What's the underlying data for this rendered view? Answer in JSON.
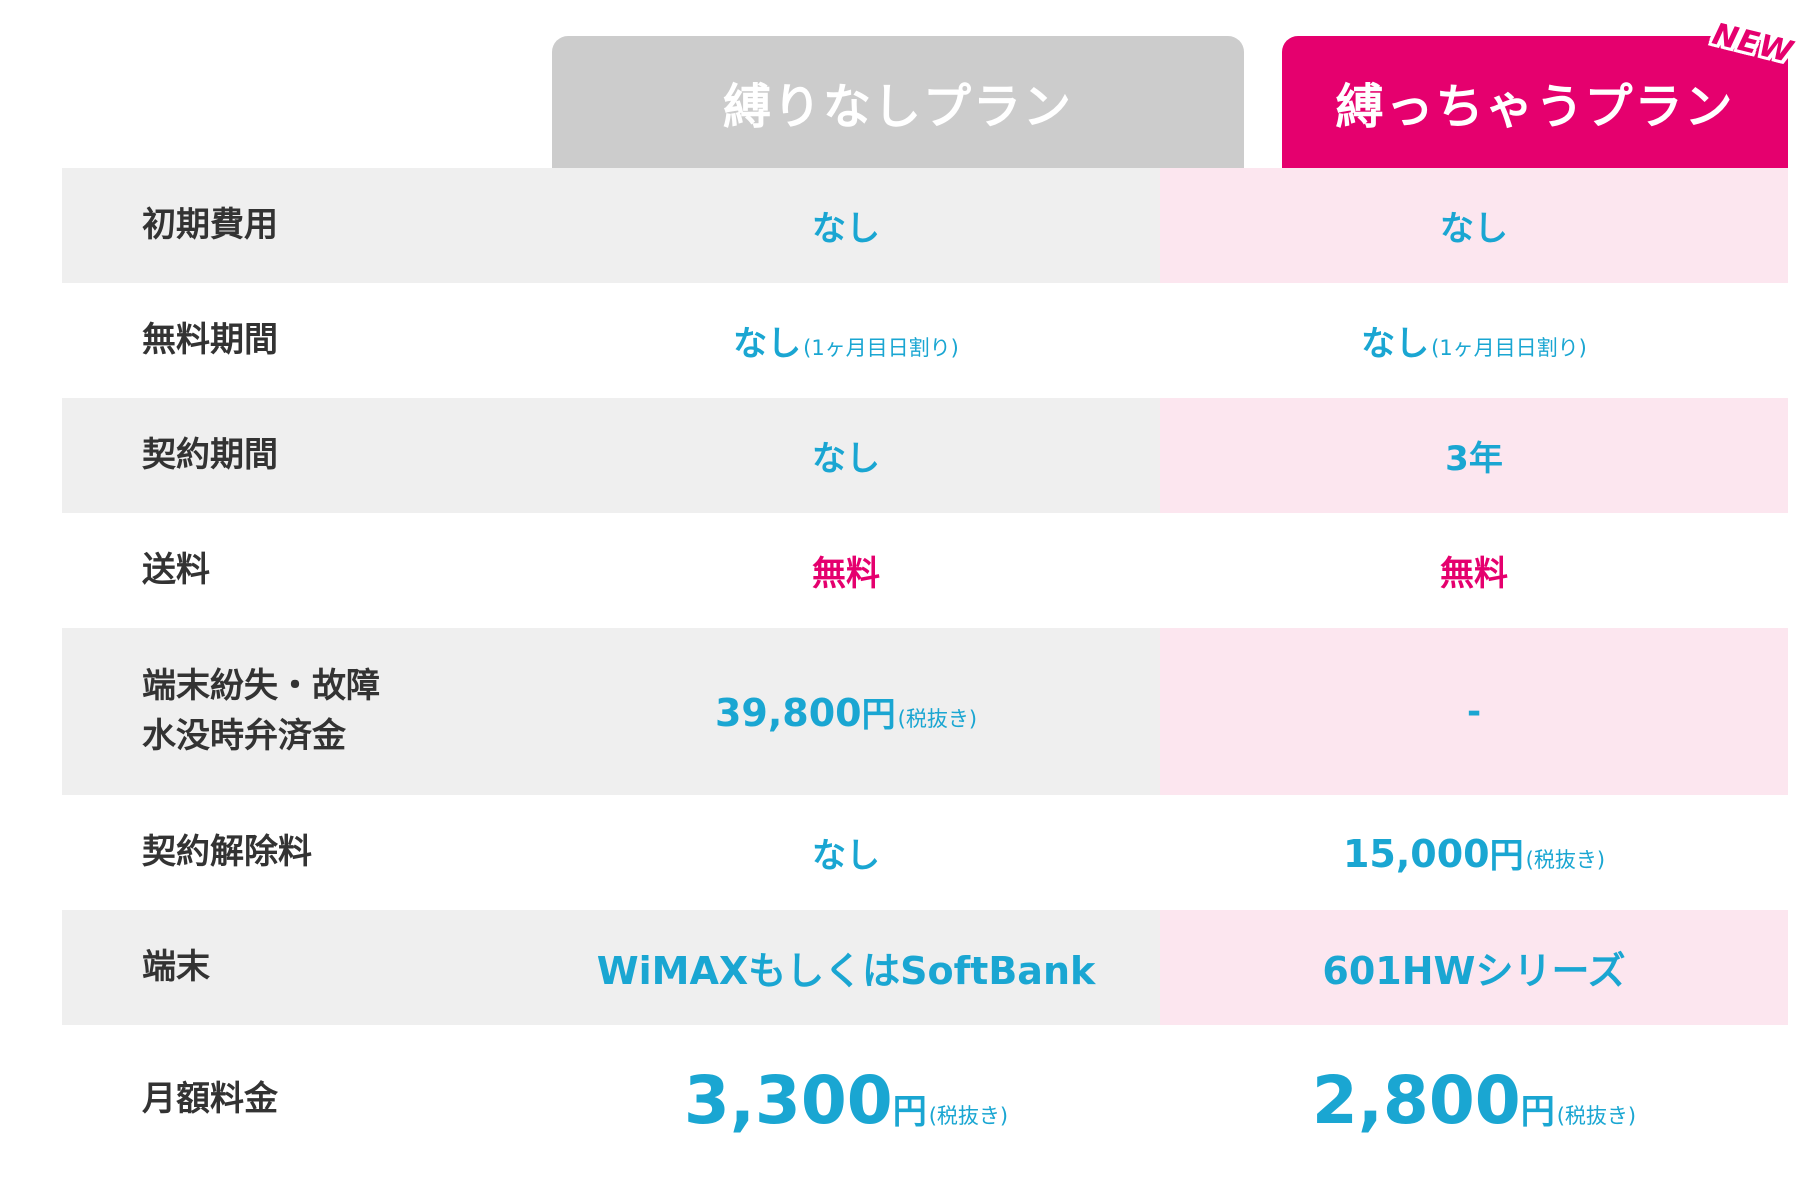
{
  "headers": {
    "free_plan": "縛りなしプラン",
    "bind_plan": "縛っちゃうプラン",
    "new_badge": "NEW"
  },
  "rows": [
    {
      "label": "初期費用",
      "free": "なし",
      "bind": "なし"
    },
    {
      "label": "無料期間",
      "free": "なし",
      "free_note": "(1ヶ月目日割り)",
      "bind": "なし",
      "bind_note": "(1ヶ月目日割り)"
    },
    {
      "label": "契約期間",
      "free": "なし",
      "bind": "3年"
    },
    {
      "label": "送料",
      "free": "無料",
      "bind": "無料"
    },
    {
      "label_line1": "端末紛失・故障",
      "label_line2": "水没時弁済金",
      "free": "39,800",
      "free_unit": "円",
      "free_note": "(税抜き)",
      "bind": "-"
    },
    {
      "label": "契約解除料",
      "free": "なし",
      "bind": "15,000",
      "bind_unit": "円",
      "bind_note": "(税抜き)"
    },
    {
      "label": "端末",
      "free": "WiMAXもしくはSoftBank",
      "bind": "601HWシリーズ"
    },
    {
      "label": "月額料金",
      "free": "3,300",
      "free_unit": "円",
      "free_note": "(税抜き)",
      "bind": "2,800",
      "bind_unit": "円",
      "bind_note": "(税抜き)"
    }
  ],
  "colors": {
    "accent_pink": "#e5006e",
    "value_blue": "#1aa6d2",
    "header_gray": "#cccccc",
    "row_gray": "#efefef",
    "row_pink": "#fce6ef"
  }
}
